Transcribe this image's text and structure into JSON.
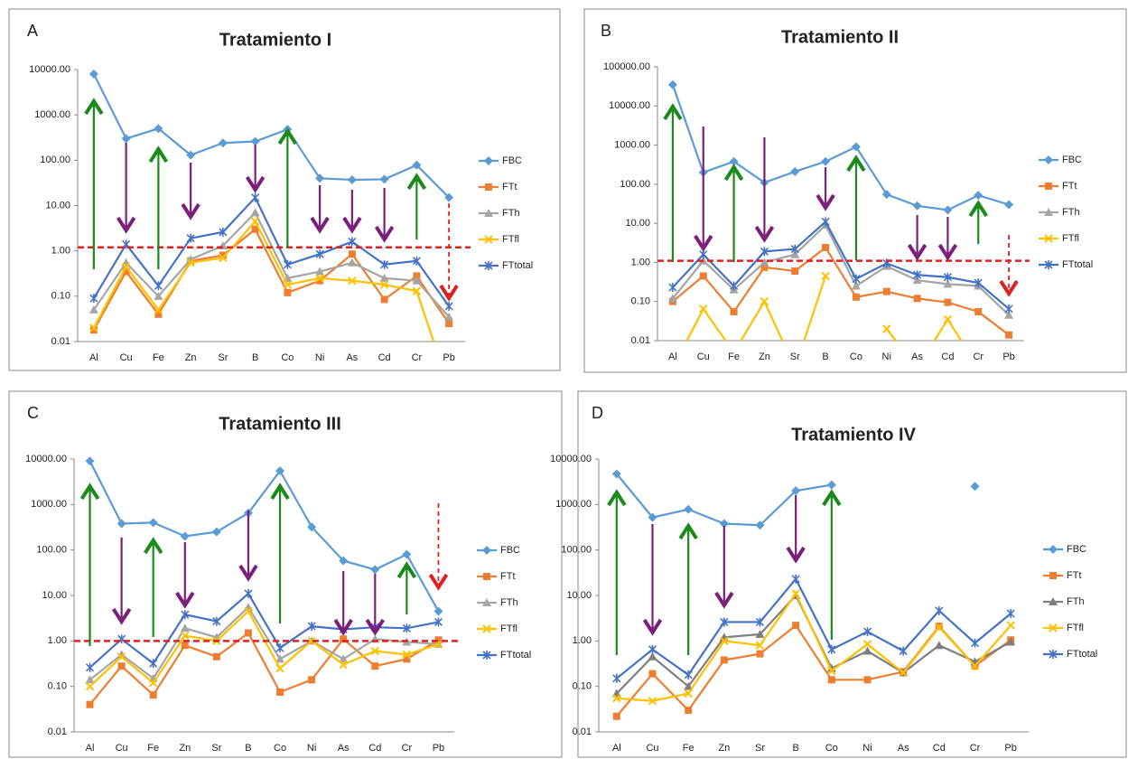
{
  "chart_data": [
    {
      "type": "line",
      "label": "A",
      "title": "Tratamiento I",
      "log_scale": true,
      "categories": [
        "Al",
        "Cu",
        "Fe",
        "Zn",
        "Sr",
        "B",
        "Co",
        "Ni",
        "As",
        "Cd",
        "Cr",
        "Pb"
      ],
      "ylim": [
        0.01,
        10000
      ],
      "yticks": [
        {
          "value": 0.01,
          "label": "0.01"
        },
        {
          "value": 0.1,
          "label": "0.10"
        },
        {
          "value": 1,
          "label": "1.00"
        },
        {
          "value": 10,
          "label": "10.00"
        },
        {
          "value": 100,
          "label": "100.00"
        },
        {
          "value": 1000,
          "label": "1000.00"
        },
        {
          "value": 10000,
          "label": "10000.00"
        }
      ],
      "hline": 1.2,
      "hline_color": "#e02020",
      "series": [
        {
          "name": "FBC",
          "color": "#5b9bd5",
          "marker": "diamond",
          "values": [
            8000,
            300,
            500,
            130,
            240,
            260,
            480,
            40,
            37,
            38,
            78,
            15
          ]
        },
        {
          "name": "FTt",
          "color": "#ed7d31",
          "marker": "square",
          "values": [
            0.018,
            0.35,
            0.04,
            0.6,
            0.8,
            3,
            0.12,
            0.22,
            0.85,
            0.085,
            0.28,
            0.025
          ]
        },
        {
          "name": "FTh",
          "color": "#a5a5a5",
          "marker": "triangle",
          "values": [
            0.05,
            0.55,
            0.1,
            0.65,
            1.3,
            7,
            0.25,
            0.35,
            0.55,
            0.25,
            0.22,
            0.035
          ]
        },
        {
          "name": "FTfl",
          "color": "#ffc000",
          "marker": "x",
          "values": [
            0.02,
            0.45,
            0.05,
            0.55,
            0.7,
            4.5,
            0.18,
            0.25,
            0.22,
            0.18,
            0.13,
            0.001
          ]
        },
        {
          "name": "FTtotal",
          "color": "#4472c4",
          "marker": "star",
          "values": [
            0.09,
            1.4,
            0.17,
            1.9,
            2.6,
            15,
            0.5,
            0.85,
            1.6,
            0.5,
            0.6,
            0.06
          ]
        }
      ]
    },
    {
      "type": "line",
      "label": "B",
      "title": "Tratamiento II",
      "log_scale": true,
      "categories": [
        "Al",
        "Cu",
        "Fe",
        "Zn",
        "Sr",
        "B",
        "Co",
        "Ni",
        "As",
        "Cd",
        "Cr",
        "Pb"
      ],
      "ylim": [
        0.01,
        100000
      ],
      "yticks": [
        {
          "value": 0.01,
          "label": "0.01"
        },
        {
          "value": 0.1,
          "label": "0.10"
        },
        {
          "value": 1,
          "label": "1.00"
        },
        {
          "value": 10,
          "label": "10.00"
        },
        {
          "value": 100,
          "label": "100.00"
        },
        {
          "value": 1000,
          "label": "1000.00"
        },
        {
          "value": 10000,
          "label": "10000.00"
        },
        {
          "value": 100000,
          "label": "100000.00"
        }
      ],
      "hline": 1.1,
      "hline_color": "#e02020",
      "series": [
        {
          "name": "FBC",
          "color": "#5b9bd5",
          "marker": "diamond",
          "values": [
            35000,
            200,
            380,
            110,
            210,
            380,
            900,
            55,
            28,
            22,
            52,
            30
          ]
        },
        {
          "name": "FTt",
          "color": "#ed7d31",
          "marker": "square",
          "values": [
            0.1,
            0.45,
            0.055,
            0.75,
            0.6,
            2.4,
            0.13,
            0.18,
            0.12,
            0.095,
            0.055,
            0.014
          ]
        },
        {
          "name": "FTh",
          "color": "#a5a5a5",
          "marker": "triangle",
          "values": [
            0.12,
            1.1,
            0.2,
            1.0,
            1.6,
            9,
            0.25,
            0.8,
            0.35,
            0.28,
            0.25,
            0.045
          ]
        },
        {
          "name": "FTfl",
          "color": "#ffc000",
          "marker": "x",
          "values": [
            0.002,
            0.065,
            0.005,
            0.1,
            0.002,
            0.45,
            null,
            0.02,
            0.002,
            0.035,
            0.002,
            null
          ]
        },
        {
          "name": "FTtotal",
          "color": "#4472c4",
          "marker": "star",
          "values": [
            0.23,
            1.6,
            0.25,
            1.9,
            2.2,
            11,
            0.38,
            0.95,
            0.48,
            0.42,
            0.3,
            0.065
          ]
        }
      ]
    },
    {
      "type": "line",
      "label": "C",
      "title": "Tratamiento III",
      "log_scale": true,
      "categories": [
        "Al",
        "Cu",
        "Fe",
        "Zn",
        "Sr",
        "B",
        "Co",
        "Ni",
        "As",
        "Cd",
        "Cr",
        "Pb"
      ],
      "ylim": [
        0.01,
        10000
      ],
      "yticks": [
        {
          "value": 0.01,
          "label": "0.01"
        },
        {
          "value": 0.1,
          "label": "0.10"
        },
        {
          "value": 1,
          "label": "1.00"
        },
        {
          "value": 10,
          "label": "10.00"
        },
        {
          "value": 100,
          "label": "100.00"
        },
        {
          "value": 1000,
          "label": "1000.00"
        },
        {
          "value": 10000,
          "label": "10000.00"
        }
      ],
      "hline": 1,
      "hline_color": "#e02020",
      "series": [
        {
          "name": "FBC",
          "color": "#5b9bd5",
          "marker": "diamond",
          "values": [
            9000,
            380,
            400,
            200,
            250,
            650,
            5500,
            320,
            58,
            37,
            80,
            4.5
          ]
        },
        {
          "name": "FTt",
          "color": "#ed7d31",
          "marker": "square",
          "values": [
            0.04,
            0.28,
            0.065,
            0.8,
            0.45,
            1.5,
            0.075,
            0.14,
            1.1,
            0.28,
            0.4,
            1.05
          ]
        },
        {
          "name": "FTh",
          "color": "#a5a5a5",
          "marker": "triangle",
          "values": [
            0.14,
            0.5,
            0.15,
            1.9,
            1.2,
            5.5,
            0.4,
            1.0,
            0.4,
            1.1,
            0.95,
            0.85
          ]
        },
        {
          "name": "FTfl",
          "color": "#ffc000",
          "marker": "x",
          "values": [
            0.1,
            0.45,
            0.12,
            1.3,
            1.0,
            4.5,
            0.25,
            1.0,
            0.3,
            0.6,
            0.5,
            0.85
          ]
        },
        {
          "name": "FTtotal",
          "color": "#4472c4",
          "marker": "star",
          "values": [
            0.26,
            1.1,
            0.32,
            3.8,
            2.7,
            11,
            0.7,
            2.1,
            1.8,
            2.0,
            1.9,
            2.6
          ]
        }
      ]
    },
    {
      "type": "line",
      "label": "D",
      "title": "Tratamiento IV",
      "log_scale": true,
      "categories": [
        "Al",
        "Cu",
        "Fe",
        "Zn",
        "Sr",
        "B",
        "Co",
        "Ni",
        "As",
        "Cd",
        "Cr",
        "Pb"
      ],
      "ylim": [
        0.01,
        10000
      ],
      "yticks": [
        {
          "value": 0.01,
          "label": "0.01"
        },
        {
          "value": 0.1,
          "label": "0.10"
        },
        {
          "value": 1,
          "label": "1.00"
        },
        {
          "value": 10,
          "label": "10.00"
        },
        {
          "value": 100,
          "label": "100.00"
        },
        {
          "value": 1000,
          "label": "1000.00"
        },
        {
          "value": 10000,
          "label": "10000.00"
        }
      ],
      "series": [
        {
          "name": "FBC",
          "color": "#5b9bd5",
          "marker": "diamond",
          "values": [
            4700,
            520,
            780,
            380,
            350,
            2000,
            2700,
            null,
            null,
            null,
            2500,
            null
          ]
        },
        {
          "name": "FTt",
          "color": "#ed7d31",
          "marker": "square",
          "values": [
            0.022,
            0.19,
            0.03,
            0.38,
            0.52,
            2.2,
            0.14,
            0.14,
            0.21,
            2.1,
            0.28,
            1.05
          ]
        },
        {
          "name": "FTh",
          "color": "#7f7f7f",
          "marker": "triangle",
          "values": [
            0.07,
            0.45,
            0.1,
            1.2,
            1.4,
            10,
            0.25,
            0.6,
            0.2,
            0.8,
            0.35,
            0.95
          ]
        },
        {
          "name": "FTfl",
          "color": "#ffc000",
          "marker": "x",
          "values": [
            0.055,
            0.048,
            0.07,
            1.0,
            0.8,
            11,
            0.22,
            0.85,
            0.2,
            2.0,
            0.28,
            2.2
          ]
        },
        {
          "name": "FTtotal",
          "color": "#4472c4",
          "marker": "star",
          "values": [
            0.15,
            0.65,
            0.18,
            2.6,
            2.6,
            23,
            0.65,
            1.6,
            0.6,
            4.6,
            0.9,
            4.0
          ]
        }
      ]
    }
  ]
}
